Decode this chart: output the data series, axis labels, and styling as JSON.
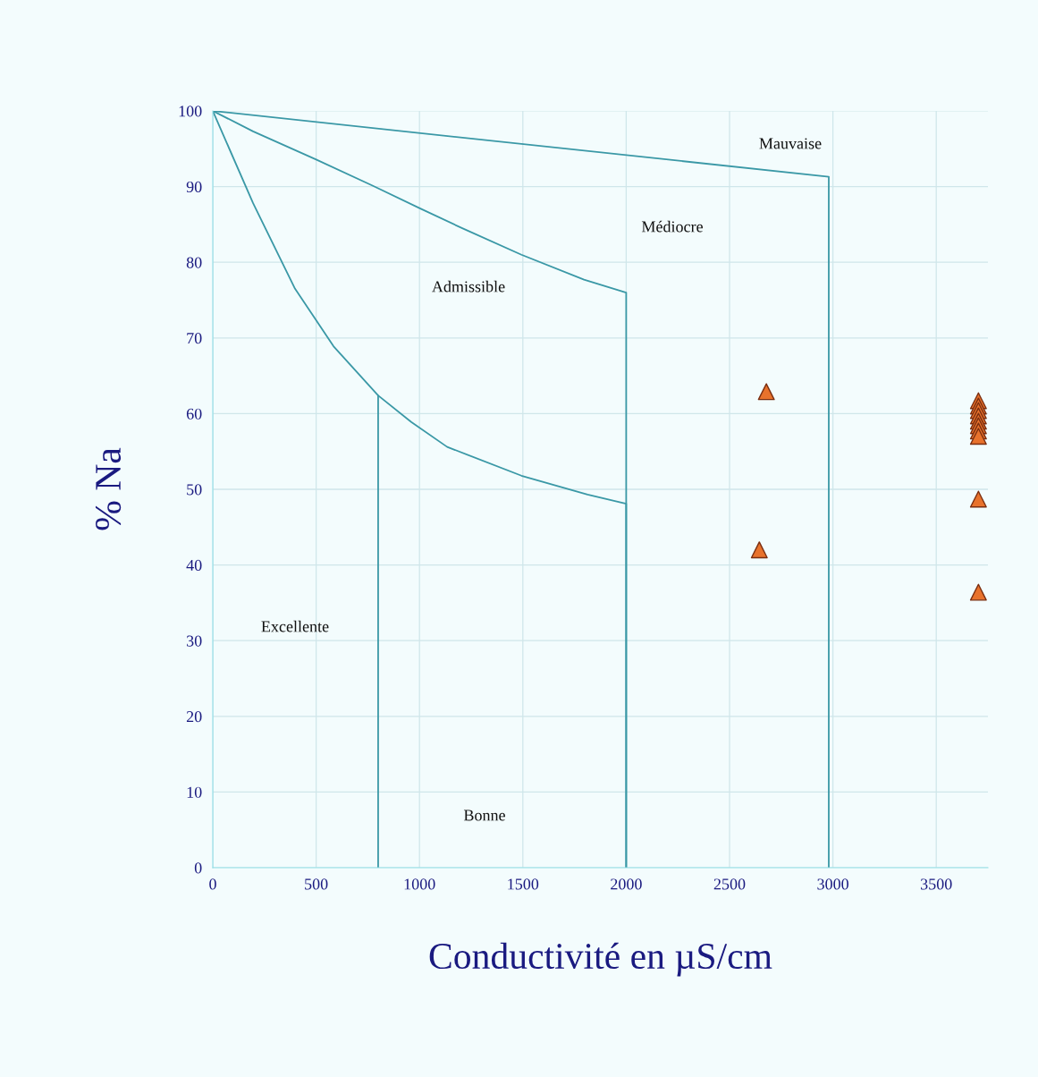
{
  "chart_data": {
    "type": "line",
    "xlabel": "Conductivité en µS/cm",
    "ylabel": "% Na",
    "xlim": [
      0,
      3750
    ],
    "ylim": [
      0,
      100
    ],
    "xticks": [
      0,
      500,
      1000,
      1500,
      2000,
      2500,
      3000,
      3500
    ],
    "yticks": [
      0,
      10,
      20,
      30,
      40,
      50,
      60,
      70,
      80,
      90,
      100
    ],
    "grid": true,
    "series": [
      {
        "color": "#3a98a6",
        "x": [
          0,
          2980,
          2980
        ],
        "values": [
          100,
          91.3,
          0
        ]
      },
      {
        "color": "#3a98a6",
        "x": [
          0,
          195,
          498,
          775,
          1004,
          1207,
          1493,
          1796,
          2000,
          2000
        ],
        "values": [
          100,
          97.3,
          93.6,
          90.1,
          87.1,
          84.5,
          81.0,
          77.7,
          76.0,
          0
        ]
      },
      {
        "color": "#3a98a6",
        "x": [
          0,
          195,
          398,
          584,
          800,
          960,
          1134,
          1493,
          1813,
          2000,
          2000
        ],
        "values": [
          100,
          87.8,
          76.5,
          68.9,
          62.4,
          58.9,
          55.6,
          51.8,
          49.3,
          48.1,
          0
        ]
      },
      {
        "color": "#3a98a6",
        "x": [
          800,
          800
        ],
        "values": [
          62.4,
          0
        ]
      },
      {
        "type": "scatter",
        "color": "#e8722c",
        "marker": "triangle",
        "x": [
          2678,
          2644,
          3704,
          3704,
          3704,
          3704,
          3704,
          3704,
          3704,
          3704,
          3704,
          3704
        ],
        "values": [
          62.9,
          42.0,
          61.7,
          61.0,
          60.4,
          59.7,
          59.0,
          58.4,
          57.7,
          57.0,
          48.7,
          36.4
        ]
      }
    ],
    "annotations": [
      "Mauvaise",
      "Médiocre",
      "Admissible",
      "Excellente",
      "Bonne"
    ]
  }
}
